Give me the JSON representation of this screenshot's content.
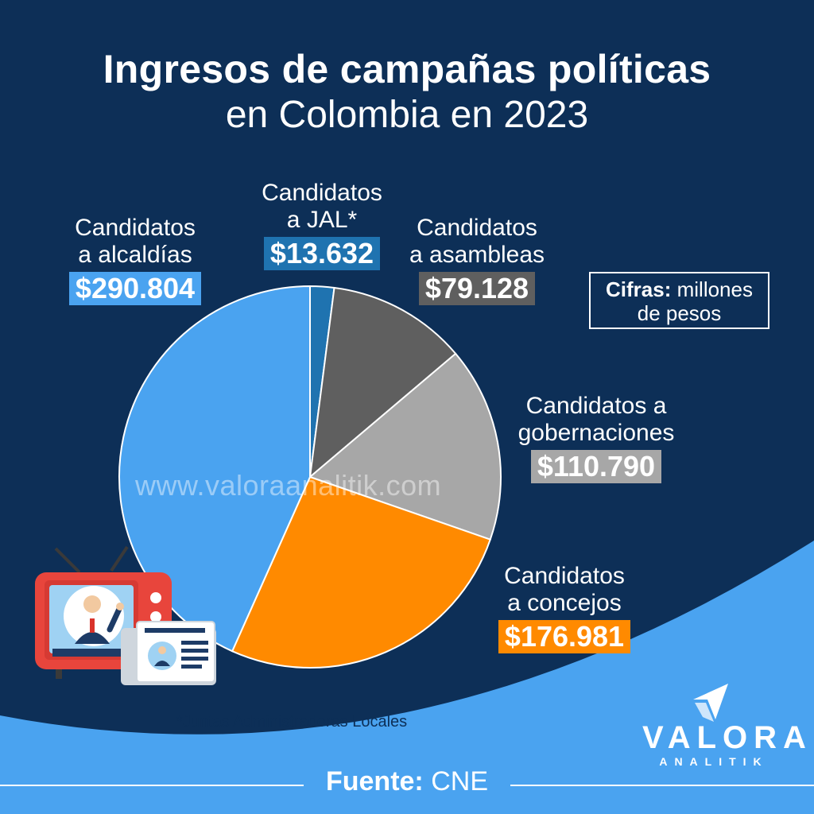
{
  "title": {
    "line1": "Ingresos de campañas políticas",
    "line2": "en Colombia en 2023"
  },
  "units": {
    "bold": "Cifras:",
    "rest_line1": "millones",
    "line2": "de pesos"
  },
  "watermark": "www.valoraanalitik.com",
  "footnote": "*Juntas Administradoras Locales",
  "source": {
    "bold": "Fuente:",
    "value": "CNE"
  },
  "brand": {
    "name": "VALORA",
    "sub": "ANALITIK"
  },
  "colors": {
    "background": "#0d2f57",
    "wave": "#4aa3f0",
    "alcaldias": "#4aa3f0",
    "jal": "#1f73b0",
    "asambleas": "#5f5f5f",
    "gobernaciones": "#a7a7a7",
    "concejos": "#ff8a00"
  },
  "icons": [
    "television-icon",
    "newspaper-icon",
    "valora-logo-icon"
  ],
  "chart_data": {
    "type": "pie",
    "title": "Ingresos de campañas políticas en Colombia en 2023",
    "units": "millones de pesos",
    "slices": [
      {
        "key": "jal",
        "label_line1": "Candidatos",
        "label_line2": "a JAL*",
        "value": 13632,
        "display": "$13.632"
      },
      {
        "key": "asambleas",
        "label_line1": "Candidatos",
        "label_line2": "a asambleas",
        "value": 79128,
        "display": "$79.128"
      },
      {
        "key": "gobernaciones",
        "label_line1": "Candidatos a",
        "label_line2": "gobernaciones",
        "value": 110790,
        "display": "$110.790"
      },
      {
        "key": "concejos",
        "label_line1": "Candidatos",
        "label_line2": "a concejos",
        "value": 176981,
        "display": "$176.981"
      },
      {
        "key": "alcaldias",
        "label_line1": "Candidatos",
        "label_line2": "a alcaldías",
        "value": 290804,
        "display": "$290.804"
      }
    ]
  }
}
